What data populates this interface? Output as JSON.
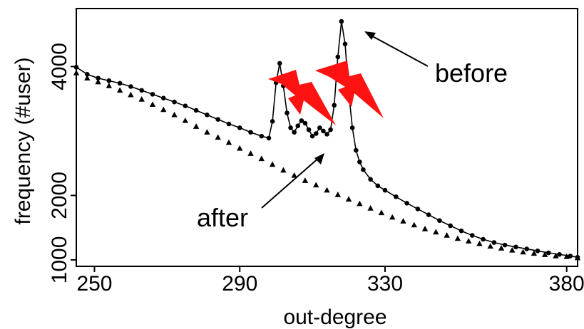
{
  "chart_data": {
    "type": "scatter",
    "title": "",
    "xlabel": "out-degree",
    "ylabel": "frequency (#user)",
    "xlim": [
      245,
      383
    ],
    "ylim": [
      900,
      4900
    ],
    "xticks": [
      250,
      290,
      330,
      380
    ],
    "yticks": [
      1000,
      2000,
      4000
    ],
    "grid": false,
    "legend": "none",
    "series": [
      {
        "marker": "circle",
        "connected": true,
        "x": [
          245,
          248,
          251,
          254,
          257,
          260,
          263,
          266,
          269,
          272,
          275,
          278,
          281,
          284,
          287,
          290,
          293,
          296,
          298,
          299,
          300,
          301,
          302,
          303,
          304,
          305,
          306,
          307,
          308,
          309,
          310,
          311,
          312,
          313,
          314,
          315,
          316,
          317,
          318,
          319,
          320,
          321,
          322,
          323,
          324,
          326,
          328,
          330,
          333,
          336,
          339,
          342,
          345,
          348,
          351,
          354,
          357,
          360,
          363,
          366,
          369,
          372,
          375,
          378,
          381,
          383
        ],
        "y": [
          3990,
          3880,
          3820,
          3780,
          3740,
          3690,
          3630,
          3570,
          3510,
          3450,
          3390,
          3320,
          3250,
          3180,
          3110,
          3050,
          2980,
          2920,
          2890,
          3150,
          3750,
          4050,
          3700,
          3280,
          3050,
          2980,
          3080,
          3160,
          3120,
          3020,
          2920,
          2960,
          3050,
          3000,
          2950,
          3020,
          3400,
          4150,
          4700,
          4350,
          3600,
          3050,
          2700,
          2520,
          2400,
          2250,
          2150,
          2080,
          1980,
          1880,
          1790,
          1700,
          1610,
          1530,
          1450,
          1380,
          1320,
          1270,
          1230,
          1200,
          1170,
          1140,
          1110,
          1085,
          1060,
          1040
        ]
      },
      {
        "marker": "triangle",
        "connected": false,
        "x": [
          245,
          248,
          251,
          254,
          257,
          260,
          263,
          266,
          269,
          272,
          275,
          278,
          281,
          284,
          287,
          290,
          293,
          296,
          299,
          302,
          305,
          308,
          311,
          314,
          317,
          320,
          323,
          326,
          329,
          332,
          335,
          338,
          341,
          344,
          347,
          350,
          353,
          356,
          359,
          362,
          365,
          368,
          371,
          374,
          377,
          380,
          383
        ],
        "y": [
          3900,
          3820,
          3760,
          3700,
          3630,
          3560,
          3490,
          3410,
          3330,
          3250,
          3160,
          3070,
          2980,
          2900,
          2820,
          2730,
          2650,
          2570,
          2480,
          2390,
          2310,
          2230,
          2160,
          2080,
          2010,
          1940,
          1870,
          1800,
          1730,
          1660,
          1600,
          1540,
          1480,
          1430,
          1380,
          1330,
          1290,
          1250,
          1210,
          1180,
          1150,
          1120,
          1100,
          1080,
          1060,
          1050,
          1030
        ]
      }
    ],
    "annotations": [
      {
        "text": "before",
        "target": [
          318,
          4700
        ]
      },
      {
        "text": "after",
        "target": [
          312,
          2020
        ]
      }
    ]
  }
}
